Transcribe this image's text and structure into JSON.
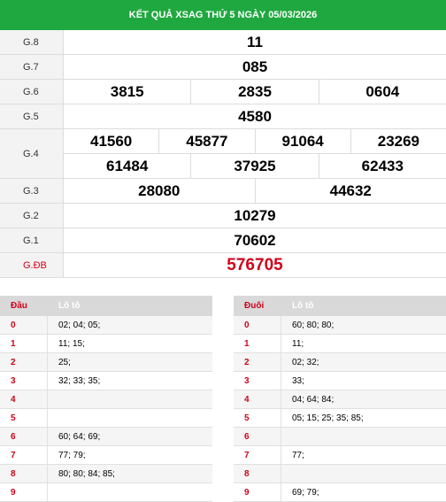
{
  "title": "KẾT QUẢ XSAG THỨ 5 NGÀY 05/03/2026",
  "prizes": [
    {
      "label": "G.8",
      "lines": [
        [
          "11"
        ]
      ]
    },
    {
      "label": "G.7",
      "lines": [
        [
          "085"
        ]
      ]
    },
    {
      "label": "G.6",
      "lines": [
        [
          "3815",
          "2835",
          "0604"
        ]
      ]
    },
    {
      "label": "G.5",
      "lines": [
        [
          "4580"
        ]
      ]
    },
    {
      "label": "G.4",
      "lines": [
        [
          "41560",
          "45877",
          "91064",
          "23269"
        ],
        [
          "61484",
          "37925",
          "62433"
        ]
      ]
    },
    {
      "label": "G.3",
      "lines": [
        [
          "28080",
          "44632"
        ]
      ]
    },
    {
      "label": "G.2",
      "lines": [
        [
          "10279"
        ]
      ]
    },
    {
      "label": "G.1",
      "lines": [
        [
          "70602"
        ]
      ]
    },
    {
      "label": "G.ĐB",
      "lines": [
        [
          "576705"
        ]
      ],
      "special": true
    }
  ],
  "dau": {
    "head1": "Đầu",
    "head2": "Lô tô",
    "rows": [
      {
        "k": "0",
        "v": "02; 04; 05;"
      },
      {
        "k": "1",
        "v": "11; 15;"
      },
      {
        "k": "2",
        "v": "25;"
      },
      {
        "k": "3",
        "v": "32; 33; 35;"
      },
      {
        "k": "4",
        "v": ""
      },
      {
        "k": "5",
        "v": ""
      },
      {
        "k": "6",
        "v": "60; 64; 69;"
      },
      {
        "k": "7",
        "v": "77; 79;"
      },
      {
        "k": "8",
        "v": "80; 80; 84; 85;"
      },
      {
        "k": "9",
        "v": ""
      }
    ]
  },
  "duoi": {
    "head1": "Đuôi",
    "head2": "Lô tô",
    "rows": [
      {
        "k": "0",
        "v": "60; 80; 80;"
      },
      {
        "k": "1",
        "v": "11;"
      },
      {
        "k": "2",
        "v": "02; 32;"
      },
      {
        "k": "3",
        "v": "33;"
      },
      {
        "k": "4",
        "v": "04; 64; 84;"
      },
      {
        "k": "5",
        "v": "05; 15; 25; 35; 85;"
      },
      {
        "k": "6",
        "v": ""
      },
      {
        "k": "7",
        "v": "77;"
      },
      {
        "k": "8",
        "v": ""
      },
      {
        "k": "9",
        "v": "69; 79;"
      }
    ]
  },
  "colors": {
    "header_green": "#1fa83f",
    "special_red": "#d0021b"
  }
}
